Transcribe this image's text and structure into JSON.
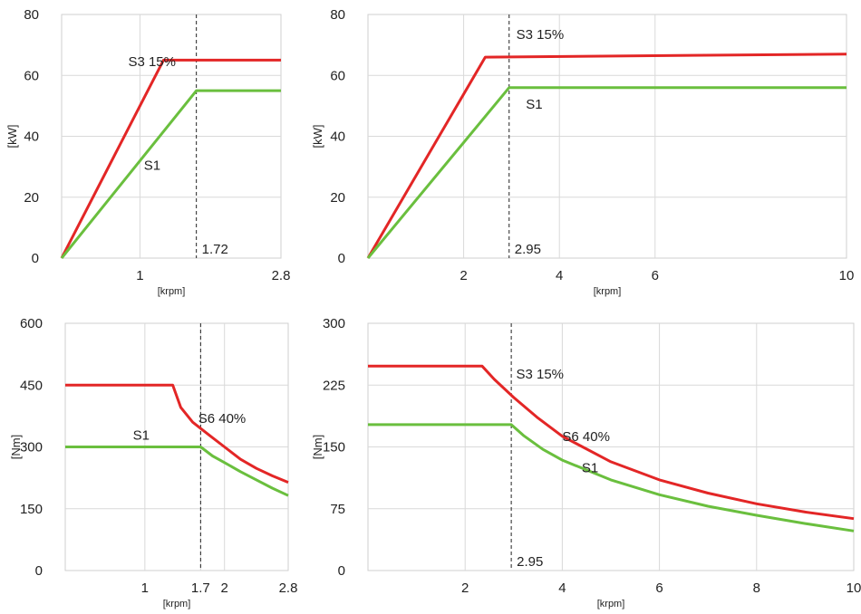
{
  "colors": {
    "s3": "#e32626",
    "s1": "#6abf3e"
  },
  "chart_data": [
    {
      "type": "line",
      "xlabel": "[krpm]",
      "ylabel": "[kW]",
      "xlim": [
        0,
        2.8
      ],
      "ylim": [
        0,
        80
      ],
      "xticks": [
        1,
        2.8
      ],
      "yticks": [
        0,
        20,
        40,
        60,
        80
      ],
      "grid": true,
      "series": [
        {
          "name": "S3 15%",
          "color": "s3",
          "x": [
            0,
            1.3,
            2.8
          ],
          "y": [
            0,
            65,
            65
          ]
        },
        {
          "name": "S1",
          "color": "s1",
          "x": [
            0,
            1.72,
            2.8
          ],
          "y": [
            0,
            55,
            55
          ]
        }
      ],
      "vline": {
        "x": 1.72,
        "label": "1.72"
      },
      "labels": [
        {
          "text": "S3 15%",
          "x": 0.85,
          "y": 63
        },
        {
          "text": "S1",
          "x": 1.05,
          "y": 29
        }
      ]
    },
    {
      "type": "line",
      "xlabel": "[krpm]",
      "ylabel": "[kW]",
      "xlim": [
        0,
        10
      ],
      "ylim": [
        0,
        80
      ],
      "xticks": [
        2,
        4,
        6,
        10
      ],
      "yticks": [
        0,
        20,
        40,
        60,
        80
      ],
      "grid": true,
      "series": [
        {
          "name": "S3 15%",
          "color": "s3",
          "x": [
            0,
            2.45,
            10
          ],
          "y": [
            0,
            66,
            67
          ]
        },
        {
          "name": "S1",
          "color": "s1",
          "x": [
            0,
            2.95,
            10
          ],
          "y": [
            0,
            56,
            56
          ]
        }
      ],
      "vline": {
        "x": 2.95,
        "label": "2.95"
      },
      "labels": [
        {
          "text": "S3 15%",
          "x": 3.1,
          "y": 72
        },
        {
          "text": "S1",
          "x": 3.3,
          "y": 49
        }
      ]
    },
    {
      "type": "line",
      "xlabel": "[krpm]",
      "ylabel": "[Nm]",
      "xlim": [
        0,
        2.8
      ],
      "ylim": [
        0,
        600
      ],
      "xticks": [
        1,
        1.7,
        2,
        2.8
      ],
      "yticks": [
        0,
        150,
        300,
        450,
        600
      ],
      "grid": true,
      "series": [
        {
          "name": "S6 40%",
          "color": "s3",
          "x": [
            0,
            1.35,
            1.45,
            1.6,
            1.8,
            2.0,
            2.2,
            2.4,
            2.6,
            2.8
          ],
          "y": [
            450,
            450,
            396,
            360,
            330,
            300,
            270,
            248,
            230,
            214
          ]
        },
        {
          "name": "S1",
          "color": "s1",
          "x": [
            0,
            1.7,
            1.85,
            2.0,
            2.2,
            2.4,
            2.6,
            2.8
          ],
          "y": [
            300,
            300,
            278,
            262,
            240,
            220,
            200,
            182
          ]
        }
      ],
      "vline": {
        "x": 1.7,
        "label": ""
      },
      "labels": [
        {
          "text": "S1",
          "x": 0.85,
          "y": 318
        },
        {
          "text": "S6 40%",
          "x": 1.67,
          "y": 358
        }
      ]
    },
    {
      "type": "line",
      "xlabel": "[krpm]",
      "ylabel": "[Nm]",
      "xlim": [
        0,
        10
      ],
      "ylim": [
        0,
        300
      ],
      "xticks": [
        2,
        4,
        6,
        8,
        10
      ],
      "yticks": [
        0,
        75,
        150,
        225,
        300
      ],
      "grid": true,
      "series": [
        {
          "name": "S6 40%",
          "color": "s3",
          "x": [
            0,
            2.35,
            2.6,
            3.0,
            3.5,
            4.0,
            5.0,
            6.0,
            7.0,
            8.0,
            9.0,
            10.0
          ],
          "y": [
            248,
            248,
            232,
            210,
            185,
            163,
            132,
            110,
            94,
            81,
            71,
            63
          ]
        },
        {
          "name": "S1",
          "color": "s1",
          "x": [
            0,
            2.95,
            3.2,
            3.6,
            4.0,
            5.0,
            6.0,
            7.0,
            8.0,
            9.0,
            10.0
          ],
          "y": [
            177,
            177,
            164,
            147,
            134,
            110,
            92,
            78,
            67,
            57,
            48
          ]
        }
      ],
      "vline": {
        "x": 2.95,
        "label": "2.95"
      },
      "labels": [
        {
          "text": "S3 15%",
          "x": 3.05,
          "y": 233
        },
        {
          "text": "S6 40%",
          "x": 4.0,
          "y": 157
        },
        {
          "text": "S1",
          "x": 4.4,
          "y": 119
        }
      ]
    }
  ]
}
